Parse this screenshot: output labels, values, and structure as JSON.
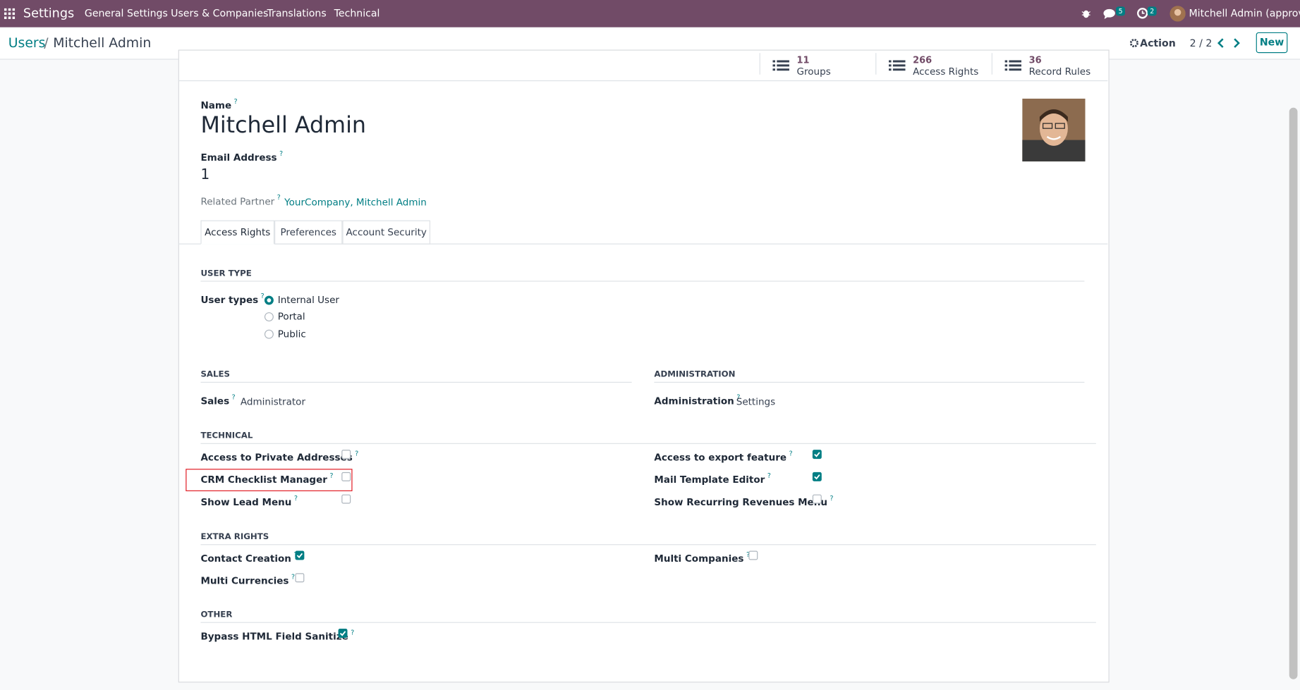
{
  "navbar": {
    "app": "Settings",
    "menus": [
      "General Settings",
      "Users & Companies",
      "Translations",
      "Technical"
    ],
    "messages_badge": "5",
    "activities_badge": "2",
    "user": "Mitchell Admin (approve)"
  },
  "breadcrumb": {
    "parent": "Users",
    "separator": "/",
    "current": "Mitchell Admin"
  },
  "control": {
    "action": "Action",
    "pager": "2 / 2",
    "new": "New"
  },
  "stat_buttons": [
    {
      "value": "11",
      "label": "Groups"
    },
    {
      "value": "266",
      "label": "Access Rights"
    },
    {
      "value": "36",
      "label": "Record Rules"
    }
  ],
  "help_mark": "?",
  "form": {
    "name_label": "Name",
    "name": "Mitchell Admin",
    "email_label": "Email Address",
    "email": "1",
    "partner_label": "Related Partner",
    "partner": "YourCompany, Mitchell Admin"
  },
  "tabs": [
    {
      "label": "Access Rights",
      "active": true
    },
    {
      "label": "Preferences",
      "active": false
    },
    {
      "label": "Account Security",
      "active": false
    }
  ],
  "user_type": {
    "title": "USER TYPE",
    "label": "User types",
    "options": [
      {
        "label": "Internal User",
        "selected": true
      },
      {
        "label": "Portal",
        "selected": false
      },
      {
        "label": "Public",
        "selected": false
      }
    ]
  },
  "sales": {
    "title": "SALES",
    "label": "Sales",
    "value": "Administrator"
  },
  "administration": {
    "title": "ADMINISTRATION",
    "label": "Administration",
    "value": "Settings"
  },
  "technical": {
    "title": "TECHNICAL",
    "left": [
      {
        "label": "Access to Private Addresses",
        "checked": false
      },
      {
        "label": "CRM Checklist Manager",
        "checked": false
      },
      {
        "label": "Show Lead Menu",
        "checked": false
      }
    ],
    "right": [
      {
        "label": "Access to export feature",
        "checked": true
      },
      {
        "label": "Mail Template Editor",
        "checked": true
      },
      {
        "label": "Show Recurring Revenues Menu",
        "checked": false
      }
    ]
  },
  "extra_rights": {
    "title": "EXTRA RIGHTS",
    "left": [
      {
        "label": "Contact Creation",
        "checked": true
      },
      {
        "label": "Multi Currencies",
        "checked": false
      }
    ],
    "right": [
      {
        "label": "Multi Companies",
        "checked": false
      }
    ]
  },
  "other": {
    "title": "OTHER",
    "left": [
      {
        "label": "Bypass HTML Field Sanitize",
        "checked": true
      }
    ],
    "right": []
  }
}
